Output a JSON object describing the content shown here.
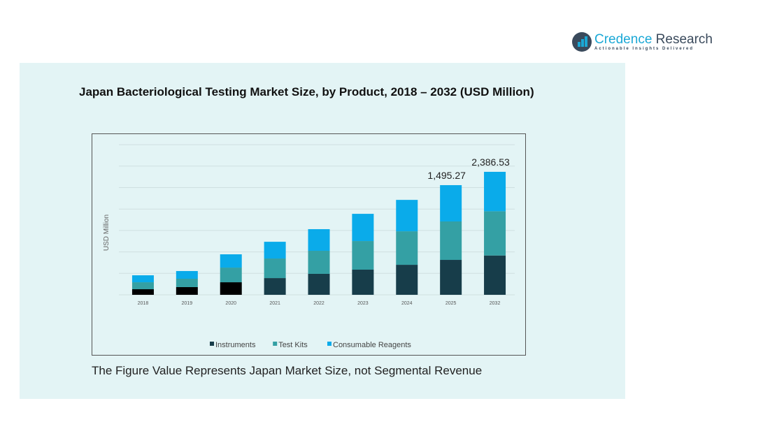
{
  "brand": {
    "name_part1": "Credence",
    "name_part2": " Research",
    "tagline": "Actionable Insights Delivered"
  },
  "note": "The Figure Value Represents Japan Market Size, not Segmental Revenue",
  "colors": {
    "instruments": "#173d4a",
    "test_kits": "#34a0a4",
    "consumable_reagents": "#0aabea",
    "instruments_early": "#000000",
    "panel": "#e3f4f5"
  },
  "chart_data": {
    "type": "bar",
    "stacked": true,
    "title": "Japan Bacteriological  Testing Market Size, by Product, 2018 – 2032 (USD Million)",
    "xlabel": "",
    "ylabel": "USD Million",
    "categories": [
      "2018",
      "2019",
      "2020",
      "2021",
      "2022",
      "2023",
      "2024",
      "2025",
      "2032"
    ],
    "series": [
      {
        "name": "Instruments",
        "values": [
          76,
          105,
          171,
          228,
          286,
          343,
          409,
          476,
          763
        ]
      },
      {
        "name": "Test Kits",
        "values": [
          95,
          114,
          200,
          267,
          314,
          390,
          457,
          524,
          859
        ]
      },
      {
        "name": "Consumable Reagents",
        "values": [
          95,
          105,
          181,
          228,
          295,
          371,
          428,
          495,
          765
        ]
      }
    ],
    "totals_labels": [
      {
        "category": "2025",
        "text": "1,495.27"
      },
      {
        "category": "2032",
        "text": "2,386.53"
      }
    ],
    "grid": true,
    "legend": "bottom-center",
    "ylim": [
      0,
      2800
    ]
  }
}
